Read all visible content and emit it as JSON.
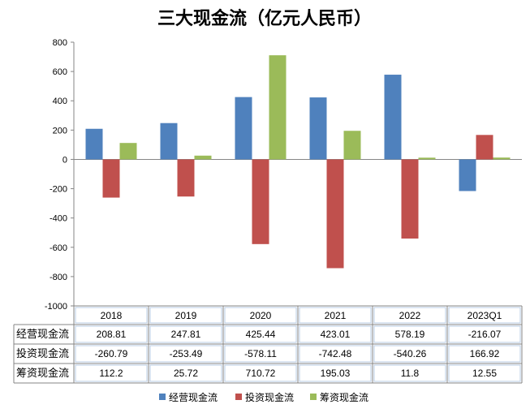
{
  "chart_data": {
    "type": "bar",
    "title": "三大现金流（亿元人民币）",
    "categories": [
      "2018",
      "2019",
      "2020",
      "2021",
      "2022",
      "2023Q1"
    ],
    "series": [
      {
        "name": "经营现金流",
        "color": "#4F81BD",
        "values": [
          208.81,
          247.81,
          425.44,
          423.01,
          578.19,
          -216.07
        ]
      },
      {
        "name": "投资现金流",
        "color": "#C0504D",
        "values": [
          -260.79,
          -253.49,
          -578.11,
          -742.48,
          -540.26,
          166.92
        ]
      },
      {
        "name": "筹资现金流",
        "color": "#9BBB59",
        "values": [
          112.2,
          25.72,
          710.72,
          195.03,
          11.8,
          12.55
        ]
      }
    ],
    "table_labels": [
      "208.81",
      "247.81",
      "425.44",
      "423.01",
      "578.19",
      "-216.07",
      "-260.79",
      "-253.49",
      "-578.11",
      "-742.48",
      "-540.26",
      "166.92",
      "112.2",
      "25.72",
      "710.72",
      "195.03",
      "11.8",
      "12.55"
    ],
    "ylim": [
      -1000,
      800
    ],
    "yticks": [
      800,
      600,
      400,
      200,
      0,
      -200,
      -400,
      -600,
      -800,
      -1000
    ],
    "legend_position": "bottom",
    "grid": false,
    "data_table": true
  }
}
